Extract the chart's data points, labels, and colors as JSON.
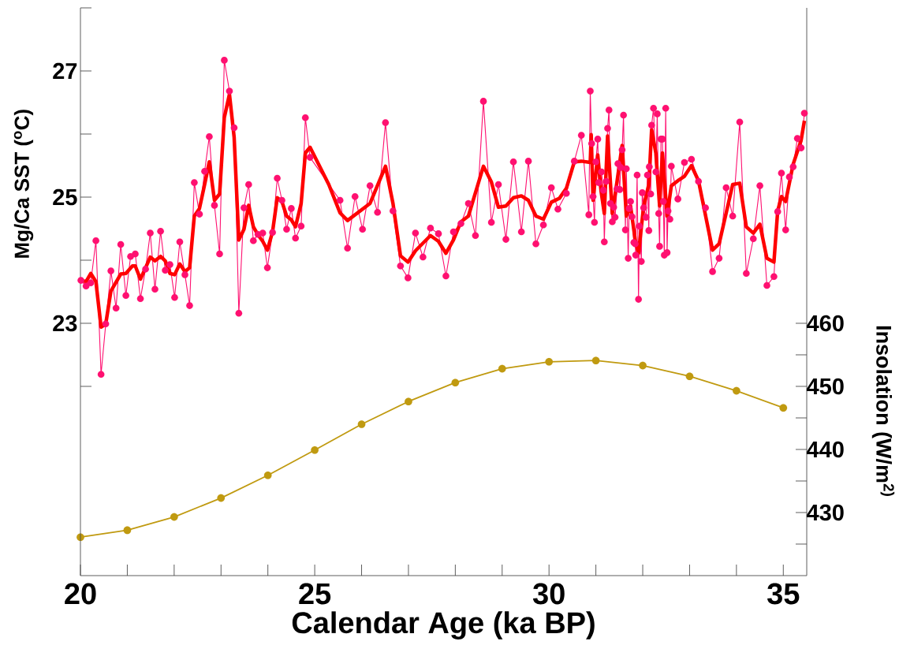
{
  "chart_data": {
    "type": "line",
    "xlabel": "Calendar Age (ka BP)",
    "ylabel": "Mg/Ca SST ($^{o}$C)",
    "y2label": "Insolation (W/m$^{2)}$",
    "xlim": [
      20,
      35.5
    ],
    "ylim": [
      19,
      28
    ],
    "y2lim": [
      420,
      510
    ],
    "xticks": [
      20,
      {
        "value": 21,
        "label": null
      },
      {
        "value": 22,
        "label": null
      },
      {
        "value": 23,
        "label": null
      },
      {
        "value": 24,
        "label": null
      },
      25,
      {
        "value": 26,
        "label": null
      },
      {
        "value": 27,
        "label": null
      },
      {
        "value": 28,
        "label": null
      },
      {
        "value": 29,
        "label": null
      },
      30,
      {
        "value": 31,
        "label": null
      },
      {
        "value": 32,
        "label": null
      },
      {
        "value": 33,
        "label": null
      },
      {
        "value": 34,
        "label": null
      },
      35
    ],
    "yticks": [
      {
        "value": 22,
        "label": null
      },
      23,
      {
        "value": 24,
        "label": null
      },
      25,
      {
        "value": 26,
        "label": null
      },
      27,
      {
        "value": 28,
        "label": null
      }
    ],
    "y2ticks": [
      {
        "value": 425,
        "label": null
      },
      430,
      {
        "value": 435,
        "label": null
      },
      440,
      {
        "value": 445,
        "label": null
      },
      450,
      {
        "value": 455,
        "label": null
      },
      460
    ],
    "series": [
      {
        "axis": "y2",
        "color": "#c09a10",
        "marker": "circle",
        "line_style": "solid",
        "x": [
          20,
          21,
          22,
          23,
          24,
          25,
          26,
          27,
          28,
          29,
          30,
          31,
          32,
          33,
          34,
          35
        ],
        "values": [
          426.1,
          427.2,
          429.3,
          432.3,
          435.9,
          439.9,
          444.0,
          447.6,
          450.6,
          452.8,
          453.9,
          454.1,
          453.3,
          451.6,
          449.3,
          446.6
        ]
      },
      {
        "color": "#ff1070",
        "marker": "circle",
        "line_style": "solid",
        "x": [
          20.01,
          20.12,
          20.22,
          20.33,
          20.44,
          20.54,
          20.65,
          20.76,
          20.86,
          20.97,
          21.07,
          21.17,
          21.28,
          21.39,
          21.49,
          21.59,
          21.71,
          21.81,
          21.91,
          22.01,
          22.12,
          22.23,
          22.33,
          22.43,
          22.54,
          22.65,
          22.75,
          22.86,
          22.97,
          23.07,
          23.18,
          23.28,
          23.38,
          23.49,
          23.59,
          23.69,
          23.79,
          23.89,
          23.99,
          24.1,
          24.2,
          24.3,
          24.4,
          24.5,
          24.59,
          24.71,
          24.8,
          24.9,
          25.54,
          25.7,
          25.86,
          26.02,
          26.18,
          26.34,
          26.51,
          26.67,
          26.83,
          26.99,
          27.15,
          27.31,
          27.47,
          27.64,
          27.8,
          27.96,
          28.12,
          28.28,
          28.43,
          28.6,
          28.77,
          28.92,
          29.08,
          29.24,
          29.41,
          29.56,
          29.72,
          29.88,
          30.05,
          30.19,
          30.37,
          30.54,
          30.69,
          30.85,
          30.88,
          30.91,
          30.94,
          30.97,
          31.0,
          31.04,
          31.06,
          31.12,
          31.16,
          31.18,
          31.22,
          31.25,
          31.28,
          31.31,
          31.35,
          31.38,
          31.41,
          31.45,
          31.47,
          31.51,
          31.53,
          31.56,
          31.59,
          31.63,
          31.65,
          31.69,
          31.71,
          31.74,
          31.77,
          31.81,
          31.84,
          31.85,
          31.88,
          31.91,
          31.93,
          31.97,
          31.99,
          32.02,
          32.07,
          32.1,
          32.13,
          32.14,
          32.17,
          32.19,
          32.23,
          32.28,
          32.31,
          32.34,
          32.36,
          32.39,
          32.42,
          32.44,
          32.46,
          32.49,
          32.52,
          32.54,
          32.58,
          32.61,
          32.75,
          32.89,
          33.04,
          33.19,
          33.34,
          33.49,
          33.63,
          33.78,
          33.92,
          34.07,
          34.21,
          34.36,
          34.5,
          34.65,
          34.8,
          34.88,
          34.96,
          35.05,
          35.13,
          35.21,
          35.3,
          35.38,
          35.45
        ],
        "values": [
          23.68,
          23.59,
          23.64,
          24.31,
          22.19,
          22.99,
          23.83,
          23.24,
          24.25,
          23.44,
          24.06,
          24.1,
          23.39,
          23.86,
          24.43,
          23.54,
          24.46,
          23.84,
          23.93,
          23.41,
          24.29,
          23.77,
          23.28,
          25.23,
          24.73,
          25.41,
          25.96,
          24.87,
          24.1,
          27.17,
          26.68,
          26.1,
          23.16,
          24.83,
          25.2,
          24.31,
          24.41,
          24.43,
          23.88,
          24.44,
          25.3,
          24.95,
          24.49,
          24.82,
          24.35,
          24.54,
          26.26,
          25.63,
          24.95,
          24.19,
          25.01,
          24.49,
          25.18,
          24.76,
          26.18,
          24.78,
          23.91,
          23.72,
          24.43,
          24.05,
          24.51,
          24.42,
          23.75,
          24.45,
          24.58,
          24.9,
          24.39,
          26.52,
          24.6,
          25.2,
          24.33,
          25.56,
          24.45,
          25.57,
          24.26,
          24.56,
          25.15,
          24.81,
          25.06,
          25.57,
          25.98,
          24.72,
          26.68,
          25.85,
          25.01,
          24.6,
          25.56,
          25.92,
          25.23,
          25.4,
          25.11,
          24.29,
          25.25,
          26.09,
          26.38,
          24.9,
          24.61,
          24.84,
          24.68,
          25.13,
          25.53,
          25.12,
          25.47,
          25.75,
          26.3,
          24.48,
          25.45,
          24.03,
          24.82,
          24.93,
          24.69,
          24.28,
          24.26,
          24.08,
          25.35,
          23.38,
          24.54,
          23.98,
          25.07,
          24.83,
          24.68,
          25.35,
          24.47,
          25.48,
          25.05,
          26.14,
          26.41,
          25.4,
          26.32,
          24.74,
          24.22,
          25.92,
          25.92,
          24.93,
          24.08,
          26.41,
          24.12,
          24.78,
          24.65,
          25.49,
          24.97,
          25.55,
          25.6,
          25.25,
          24.83,
          23.82,
          24.03,
          25.15,
          24.7,
          26.19,
          23.79,
          24.34,
          25.18,
          23.6,
          23.74,
          24.77,
          25.38,
          24.48,
          25.32,
          25.48,
          25.93,
          25.78,
          26.33
        ]
      },
      {
        "color": "#ff0000",
        "marker": "none",
        "line_style": "solid",
        "x": [
          20.02,
          20.12,
          20.22,
          20.33,
          20.44,
          20.54,
          20.65,
          20.86,
          20.97,
          21.11,
          21.17,
          21.28,
          21.39,
          21.49,
          21.59,
          21.71,
          21.81,
          21.91,
          22.01,
          22.12,
          22.23,
          22.33,
          22.43,
          22.54,
          22.65,
          22.75,
          22.86,
          22.97,
          23.07,
          23.18,
          23.28,
          23.38,
          23.49,
          23.59,
          23.69,
          23.79,
          23.89,
          23.99,
          24.1,
          24.2,
          24.3,
          24.4,
          24.5,
          24.59,
          24.71,
          24.8,
          24.9,
          25.3,
          25.54,
          25.7,
          26.18,
          26.51,
          26.67,
          26.83,
          26.99,
          27.15,
          27.47,
          27.64,
          27.8,
          27.96,
          28.12,
          28.28,
          28.6,
          28.77,
          28.92,
          29.08,
          29.24,
          29.41,
          29.56,
          29.72,
          29.88,
          30.05,
          30.22,
          30.37,
          30.54,
          30.69,
          30.88,
          30.9,
          30.94,
          31.04,
          31.11,
          31.18,
          31.25,
          31.35,
          31.45,
          31.56,
          31.65,
          31.74,
          31.84,
          31.91,
          32.02,
          32.13,
          32.19,
          32.28,
          32.36,
          32.42,
          32.52,
          32.61,
          32.75,
          32.89,
          33.04,
          33.19,
          33.49,
          33.63,
          33.92,
          34.07,
          34.21,
          34.36,
          34.5,
          34.65,
          34.8,
          34.88,
          34.96,
          35.05,
          35.21,
          35.38,
          35.45
        ],
        "values": [
          23.68,
          23.66,
          23.79,
          23.66,
          22.94,
          22.99,
          23.51,
          23.78,
          23.79,
          23.91,
          23.91,
          23.7,
          23.88,
          24.05,
          23.99,
          24.06,
          23.99,
          23.79,
          23.77,
          23.94,
          23.82,
          23.88,
          24.7,
          24.82,
          25.2,
          25.56,
          24.95,
          25.05,
          26.26,
          26.63,
          25.95,
          24.32,
          24.49,
          24.87,
          24.53,
          24.4,
          24.3,
          24.16,
          24.45,
          24.99,
          24.93,
          24.7,
          24.64,
          24.53,
          24.9,
          25.7,
          25.79,
          25.2,
          24.75,
          24.63,
          24.9,
          25.49,
          24.9,
          24.07,
          23.97,
          24.15,
          24.39,
          24.3,
          24.11,
          24.32,
          24.61,
          24.7,
          25.49,
          25.24,
          24.84,
          24.86,
          24.99,
          25.02,
          24.95,
          24.7,
          24.65,
          24.92,
          24.98,
          25.14,
          25.56,
          25.57,
          25.55,
          25.99,
          24.95,
          25.67,
          25.1,
          24.74,
          25.97,
          24.74,
          25.24,
          25.82,
          24.7,
          24.86,
          24.32,
          24.11,
          24.86,
          25.2,
          26.07,
          25.7,
          24.86,
          25.7,
          24.7,
          25.18,
          25.26,
          25.33,
          25.5,
          25.26,
          24.16,
          24.26,
          25.2,
          25.22,
          24.53,
          24.43,
          24.57,
          24.03,
          23.97,
          24.78,
          25.01,
          24.93,
          25.52,
          25.9,
          26.21
        ]
      }
    ]
  }
}
